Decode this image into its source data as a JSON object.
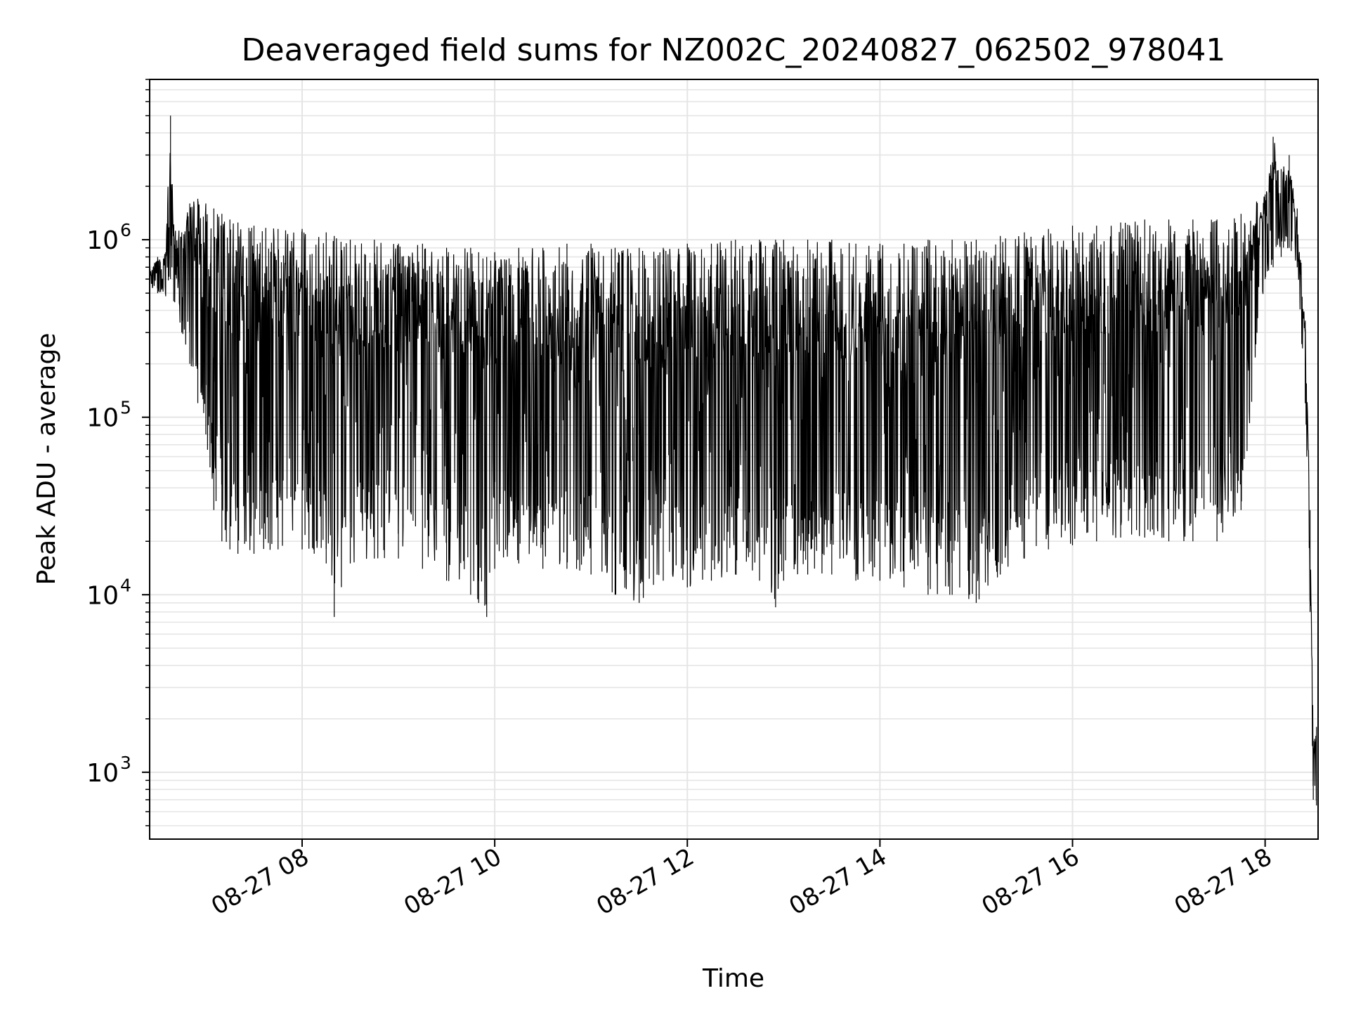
{
  "chart_data": {
    "type": "line",
    "title": "Deaveraged field sums for NZ002C_20240827_062502_978041",
    "xlabel": "Time",
    "ylabel": "Peak ADU - average",
    "yscale": "log",
    "ylim": [
      420,
      8000000
    ],
    "xlim": [
      "08-27 06:25",
      "08-27 18:33"
    ],
    "grid": true,
    "grid_color": "#e5e5e5",
    "line_color": "#000000",
    "x_ticks": [
      {
        "label": "08-27 08",
        "t": "08:00"
      },
      {
        "label": "08-27 10",
        "t": "10:00"
      },
      {
        "label": "08-27 12",
        "t": "12:00"
      },
      {
        "label": "08-27 14",
        "t": "14:00"
      },
      {
        "label": "08-27 16",
        "t": "16:00"
      },
      {
        "label": "08-27 18",
        "t": "18:00"
      }
    ],
    "y_ticks": [
      {
        "base": "10",
        "exp": "3",
        "value": 1000
      },
      {
        "base": "10",
        "exp": "4",
        "value": 10000
      },
      {
        "base": "10",
        "exp": "5",
        "value": 100000
      },
      {
        "base": "10",
        "exp": "6",
        "value": 1000000
      }
    ],
    "series": [
      {
        "x": [
          "06:25",
          "06:30",
          "06:35",
          "06:38",
          "06:40",
          "06:45",
          "06:50",
          "06:55",
          "07:00",
          "07:05",
          "07:10",
          "07:15",
          "07:20",
          "07:30",
          "07:45",
          "08:00",
          "08:15",
          "08:20",
          "08:30",
          "08:45",
          "09:00",
          "09:15",
          "09:30",
          "09:45",
          "09:50",
          "09:55",
          "10:00",
          "10:15",
          "10:30",
          "10:45",
          "11:00",
          "11:15",
          "11:30",
          "11:45",
          "12:00",
          "12:15",
          "12:30",
          "12:45",
          "12:55",
          "13:00",
          "13:15",
          "13:30",
          "13:45",
          "14:00",
          "14:15",
          "14:30",
          "14:45",
          "15:00",
          "15:15",
          "15:30",
          "15:45",
          "16:00",
          "16:15",
          "16:30",
          "16:45",
          "17:00",
          "17:15",
          "17:30",
          "17:45",
          "18:00",
          "18:05",
          "18:10",
          "18:15",
          "18:20",
          "18:25",
          "18:28",
          "18:30",
          "18:32"
        ],
        "peak": [
          700000,
          800000,
          850000,
          5000000,
          1200000,
          1100000,
          1600000,
          1700000,
          1600000,
          1500000,
          1400000,
          1300000,
          1250000,
          1200000,
          1150000,
          1150000,
          1100000,
          1050000,
          1000000,
          1000000,
          950000,
          950000,
          900000,
          900000,
          850000,
          800000,
          850000,
          900000,
          900000,
          950000,
          950000,
          900000,
          900000,
          900000,
          950000,
          950000,
          1000000,
          1000000,
          1000000,
          1000000,
          1000000,
          1000000,
          950000,
          950000,
          950000,
          1000000,
          1000000,
          1000000,
          1050000,
          1100000,
          1150000,
          1200000,
          1200000,
          1250000,
          1300000,
          1300000,
          1300000,
          1300000,
          1400000,
          1800000,
          3800000,
          2500000,
          3000000,
          1500000,
          350000,
          30000,
          1500,
          1800
        ],
        "floor": [
          550000,
          500000,
          480000,
          600000,
          450000,
          300000,
          200000,
          120000,
          80000,
          30000,
          20000,
          18000,
          17000,
          17000,
          18000,
          18000,
          15000,
          7500,
          15000,
          16000,
          16000,
          14000,
          12000,
          10000,
          9000,
          7500,
          14000,
          15000,
          14000,
          14000,
          13000,
          10000,
          9000,
          12000,
          11000,
          12000,
          13000,
          12000,
          8500,
          12000,
          13000,
          13000,
          12000,
          12000,
          11000,
          10000,
          10000,
          9000,
          13000,
          16000,
          18000,
          19000,
          20000,
          21000,
          21000,
          20000,
          20000,
          20000,
          30000,
          600000,
          700000,
          800000,
          900000,
          700000,
          120000,
          8000,
          700,
          650
        ]
      }
    ]
  }
}
